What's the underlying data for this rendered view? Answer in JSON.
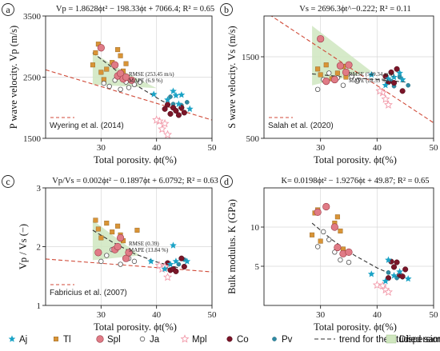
{
  "colors": {
    "Aj": "#1ba3c6",
    "Tl": "#d99436",
    "Spl": "#e07b86",
    "Ja": "#8a8a8a",
    "Mpl": "#f29aaa",
    "Co": "#7a1528",
    "Pv": "#2f8aa3",
    "trend": "#333333",
    "reference": "#d04a38",
    "dispersion": "#cfe6bf",
    "grid": "#d9d9d9"
  },
  "legend": {
    "items": [
      {
        "key": "Aj",
        "label": "Aj",
        "marker": "star"
      },
      {
        "key": "Tl",
        "label": "Tl",
        "marker": "square"
      },
      {
        "key": "Spl",
        "label": "Spl",
        "marker": "circle-large"
      },
      {
        "key": "Ja",
        "label": "Ja",
        "marker": "circle-open"
      },
      {
        "key": "Mpl",
        "label": "Mpl",
        "marker": "star-open"
      },
      {
        "key": "Co",
        "label": "Co",
        "marker": "circle-dark"
      },
      {
        "key": "Pv",
        "label": "Pv",
        "marker": "circle-small"
      },
      {
        "key": "trend",
        "label": "trend for the studied samples",
        "marker": "dash"
      },
      {
        "key": "dispersion",
        "label": "Dispersion",
        "marker": "rect"
      }
    ]
  },
  "chart_data": [
    {
      "panel": "a",
      "type": "scatter",
      "formula": "Vp = 1.8628ϕt² − 198.33ϕt + 7066.4;   R² = 0.65",
      "xlabel": "Total porosity. ϕt(%)",
      "ylabel": "P wave velocity. Vp (m/s)",
      "xlim": [
        20,
        50
      ],
      "ylim": [
        1500,
        3500
      ],
      "xticks": [
        30,
        40,
        50
      ],
      "yticks": [
        1500,
        2500,
        3500
      ],
      "ref_label": "Wyering et al. (2014)",
      "stats": [
        "RMSE (253.45 m/s)",
        "MAPE (6.9 %)"
      ],
      "trend": [
        [
          28.5,
          2900
        ],
        [
          33,
          2590
        ],
        [
          37,
          2330
        ],
        [
          41,
          2110
        ],
        [
          44,
          1990
        ]
      ],
      "reference_line": [
        [
          20,
          2620
        ],
        [
          50,
          1800
        ]
      ],
      "dispersion": [
        [
          28.5,
          2900
        ],
        [
          35,
          2550
        ],
        [
          40,
          2320
        ],
        [
          28.5,
          2380
        ]
      ],
      "series": {
        "Tl": [
          [
            28.5,
            2700
          ],
          [
            29,
            2900
          ],
          [
            29.5,
            3040
          ],
          [
            30,
            2580
          ],
          [
            30.5,
            2460
          ],
          [
            31,
            2630
          ],
          [
            32,
            2740
          ],
          [
            33,
            2950
          ],
          [
            33.5,
            2850
          ],
          [
            34,
            2600
          ],
          [
            34.5,
            2720
          ]
        ],
        "Spl": [
          [
            30,
            2980
          ],
          [
            32.5,
            2700
          ],
          [
            33,
            2520
          ],
          [
            33.5,
            2560
          ],
          [
            34,
            2470
          ],
          [
            34.5,
            2500
          ],
          [
            35.5,
            2450
          ]
        ],
        "Ja": [
          [
            30.5,
            2400
          ],
          [
            31.5,
            2350
          ],
          [
            32.5,
            2450
          ],
          [
            33.5,
            2300
          ],
          [
            34.5,
            2420
          ],
          [
            35,
            2330
          ],
          [
            36,
            2380
          ],
          [
            37,
            2420
          ]
        ],
        "Aj": [
          [
            39.5,
            2220
          ],
          [
            42,
            2130
          ],
          [
            43,
            2270
          ],
          [
            43.5,
            2200
          ],
          [
            44,
            2060
          ],
          [
            44.5,
            2210
          ],
          [
            46,
            1980
          ]
        ],
        "Co": [
          [
            41.5,
            1980
          ],
          [
            42,
            2050
          ],
          [
            42.5,
            1900
          ],
          [
            43,
            2000
          ],
          [
            43.5,
            1950
          ],
          [
            44,
            1880
          ],
          [
            44.5,
            2000
          ],
          [
            45,
            1920
          ]
        ],
        "Mpl": [
          [
            40.5,
            1780
          ],
          [
            41,
            1650
          ],
          [
            41.5,
            1740
          ],
          [
            42,
            1560
          ],
          [
            40,
            1800
          ]
        ],
        "Pv": [
          [
            42.5,
            2180
          ],
          [
            43,
            2060
          ],
          [
            44.5,
            2040
          ],
          [
            45.5,
            2090
          ]
        ]
      }
    },
    {
      "panel": "b",
      "type": "scatter",
      "formula": "Vs = 2696.3ϕt^−0.222;   R² = 0.11",
      "xlabel": "Total porosity. ϕt(%)",
      "ylabel": "S wave velocity. Vs (m/s)",
      "xlim": [
        20,
        50
      ],
      "ylim": [
        500,
        2000
      ],
      "xticks": [
        30,
        40,
        50
      ],
      "yticks": [
        500,
        1500
      ],
      "ref_label": "Salah et al. (2020)",
      "stats": [
        "RMSE (549.34 m/s)",
        "MAPE (28.55 %)"
      ],
      "trend": [
        [
          28.5,
          1290
        ],
        [
          33,
          1260
        ],
        [
          37,
          1235
        ],
        [
          41,
          1215
        ],
        [
          45,
          1190
        ]
      ],
      "reference_line": [
        [
          20,
          2060
        ],
        [
          50,
          690
        ]
      ],
      "dispersion": [
        [
          28.5,
          1880
        ],
        [
          39,
          1320
        ],
        [
          28.5,
          1150
        ]
      ],
      "series": {
        "Tl": [
          [
            29.5,
            1350
          ],
          [
            30,
            1280
          ],
          [
            31,
            1400
          ],
          [
            32,
            1230
          ],
          [
            33,
            1300
          ],
          [
            34,
            1380
          ],
          [
            34.5,
            1250
          ]
        ],
        "Spl": [
          [
            30,
            1720
          ],
          [
            31,
            1200
          ],
          [
            32.5,
            1220
          ],
          [
            33.5,
            1390
          ],
          [
            34.5,
            1310
          ],
          [
            35,
            1400
          ]
        ],
        "Ja": [
          [
            29.5,
            1100
          ],
          [
            30.5,
            1220
          ],
          [
            31.5,
            1300
          ],
          [
            33,
            1240
          ],
          [
            34,
            1150
          ],
          [
            35.5,
            1260
          ],
          [
            36.5,
            1200
          ]
        ],
        "Aj": [
          [
            39,
            1280
          ],
          [
            41.5,
            1150
          ],
          [
            42,
            1230
          ],
          [
            43,
            1250
          ],
          [
            44,
            1300
          ],
          [
            44.5,
            1220
          ]
        ],
        "Co": [
          [
            41.5,
            1260
          ],
          [
            42,
            1190
          ],
          [
            42.5,
            1310
          ],
          [
            43,
            1180
          ],
          [
            43.5,
            1350
          ],
          [
            44.5,
            1080
          ]
        ],
        "Mpl": [
          [
            41,
            1060
          ],
          [
            41.5,
            980
          ],
          [
            42,
            910
          ],
          [
            40.5,
            1080
          ]
        ],
        "Pv": [
          [
            42.5,
            1200
          ],
          [
            43,
            1140
          ],
          [
            44,
            1250
          ],
          [
            45.5,
            1150
          ]
        ]
      }
    },
    {
      "panel": "c",
      "type": "scatter",
      "formula": "Vp/Vs = 0.002ϕt² − 0.1897ϕt + 6.0792;   R² = 0.63",
      "xlabel": "Total porosity. ϕt(%)",
      "ylabel": "Vp / Vs (−)",
      "xlim": [
        20,
        50
      ],
      "ylim": [
        1,
        3
      ],
      "xticks": [
        30,
        40,
        50
      ],
      "yticks": [
        1,
        2,
        3
      ],
      "ref_label": "Fabricius et al. (2007)",
      "stats": [
        "RMSE (0.39)",
        "MAPE (13.84 %)"
      ],
      "trend": [
        [
          28.5,
          2.28
        ],
        [
          32,
          2.08
        ],
        [
          36,
          1.88
        ],
        [
          40,
          1.74
        ],
        [
          44,
          1.64
        ]
      ],
      "reference_line": [
        [
          20,
          1.79
        ],
        [
          50,
          1.57
        ]
      ],
      "dispersion": [
        [
          28.5,
          2.45
        ],
        [
          37,
          1.85
        ],
        [
          28.5,
          1.77
        ]
      ],
      "series": {
        "Tl": [
          [
            29,
            2.45
          ],
          [
            29.5,
            2.3
          ],
          [
            30,
            2.15
          ],
          [
            31,
            2.4
          ],
          [
            32,
            2.25
          ],
          [
            33,
            2.35
          ],
          [
            33.5,
            2.2
          ],
          [
            34,
            2.1
          ],
          [
            36.5,
            2.28
          ]
        ],
        "Spl": [
          [
            29.5,
            1.9
          ],
          [
            32.5,
            1.95
          ],
          [
            33,
            2.0
          ],
          [
            33.5,
            2.15
          ],
          [
            34.5,
            1.8
          ],
          [
            35,
            1.9
          ]
        ],
        "Ja": [
          [
            30,
            1.75
          ],
          [
            31,
            1.85
          ],
          [
            32,
            1.95
          ],
          [
            33.5,
            1.7
          ],
          [
            35,
            1.8
          ],
          [
            36,
            1.75
          ]
        ],
        "Aj": [
          [
            39,
            1.75
          ],
          [
            41.5,
            1.62
          ],
          [
            42.5,
            1.7
          ],
          [
            43,
            2.02
          ],
          [
            43.5,
            1.75
          ],
          [
            45.5,
            1.75
          ]
        ],
        "Co": [
          [
            41.5,
            1.65
          ],
          [
            42,
            1.72
          ],
          [
            42.5,
            1.6
          ],
          [
            43,
            1.62
          ],
          [
            43.5,
            1.58
          ],
          [
            44.5,
            1.8
          ],
          [
            45,
            1.66
          ]
        ],
        "Mpl": [
          [
            40.5,
            1.68
          ],
          [
            41,
            1.62
          ],
          [
            41.5,
            1.66
          ],
          [
            42,
            1.48
          ]
        ],
        "Pv": [
          [
            42.5,
            1.6
          ],
          [
            44,
            1.7
          ],
          [
            45,
            1.78
          ]
        ]
      }
    },
    {
      "panel": "d",
      "type": "scatter",
      "formula": "K= 0.0198ϕt² − 1.9276ϕt + 49.87;   R² = 0.65",
      "xlabel": "Total porosity. ϕt(%)",
      "ylabel": "Bulk modulus. K (GPa)",
      "xlim": [
        20,
        50
      ],
      "ylim": [
        0,
        15
      ],
      "xticks": [
        30,
        40,
        50
      ],
      "yticks": [
        5,
        10
      ],
      "ref_label": "",
      "stats": [],
      "trend": [
        [
          28.5,
          10.5
        ],
        [
          32,
          8.4
        ],
        [
          36,
          6.4
        ],
        [
          40,
          4.8
        ],
        [
          44,
          3.5
        ]
      ],
      "reference_line": [],
      "dispersion": [],
      "series": {
        "Tl": [
          [
            28.5,
            9.0
          ],
          [
            29,
            11.8
          ],
          [
            29.5,
            12.2
          ],
          [
            30,
            8.2
          ],
          [
            32.5,
            10.5
          ],
          [
            33,
            11.3
          ],
          [
            33.5,
            9.5
          ],
          [
            34,
            7.2
          ]
        ],
        "Spl": [
          [
            29.5,
            11.9
          ],
          [
            31,
            12.6
          ],
          [
            32.5,
            10.0
          ],
          [
            33,
            7.4
          ],
          [
            34,
            6.6
          ],
          [
            35,
            6.8
          ]
        ],
        "Ja": [
          [
            29.5,
            7.5
          ],
          [
            30.5,
            9.4
          ],
          [
            31.5,
            8.4
          ],
          [
            32.5,
            6.8
          ],
          [
            33.5,
            5.8
          ],
          [
            35,
            5.5
          ]
        ],
        "Aj": [
          [
            39,
            4.0
          ],
          [
            41.5,
            3.1
          ],
          [
            42,
            5.8
          ],
          [
            43,
            3.8
          ],
          [
            44,
            4.3
          ],
          [
            45.5,
            3.4
          ]
        ],
        "Co": [
          [
            42,
            3.5
          ],
          [
            42.5,
            5.6
          ],
          [
            43,
            4.9
          ],
          [
            43.5,
            5.5
          ],
          [
            44,
            3.9
          ],
          [
            44.5,
            3.7
          ],
          [
            45,
            4.6
          ]
        ],
        "Mpl": [
          [
            40,
            2.6
          ],
          [
            41,
            2.5
          ],
          [
            41.5,
            2.0
          ],
          [
            42,
            1.7
          ]
        ],
        "Pv": [
          [
            42,
            4.2
          ],
          [
            43.5,
            3.5
          ],
          [
            44.5,
            3.6
          ]
        ]
      }
    }
  ]
}
